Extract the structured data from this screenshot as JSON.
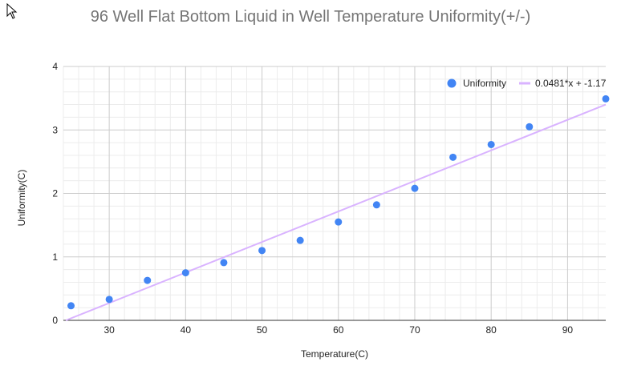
{
  "chart_data": {
    "type": "scatter",
    "title": "96 Well Flat Bottom Liquid in Well Temperature Uniformity(+/-)",
    "xlabel": "Temperature(C)",
    "ylabel": "Uniformity(C)",
    "xlim": [
      24,
      95
    ],
    "ylim": [
      0,
      4
    ],
    "xticks": [
      30,
      40,
      50,
      60,
      70,
      80,
      90
    ],
    "yticks": [
      0,
      1,
      2,
      3,
      4
    ],
    "grid": true,
    "legend_position": "top-right",
    "series": [
      {
        "name": "Uniformity",
        "color": "#4285f4",
        "x": [
          25,
          30,
          35,
          40,
          45,
          50,
          55,
          60,
          65,
          70,
          75,
          80,
          85,
          95
        ],
        "y": [
          0.23,
          0.33,
          0.63,
          0.75,
          0.91,
          1.1,
          1.26,
          1.55,
          1.82,
          2.08,
          2.57,
          2.77,
          3.05,
          3.49
        ]
      }
    ],
    "trendline": {
      "label": "0.0481*x + -1.17",
      "slope": 0.0481,
      "intercept": -1.17,
      "color": "#d9b3ff"
    }
  }
}
